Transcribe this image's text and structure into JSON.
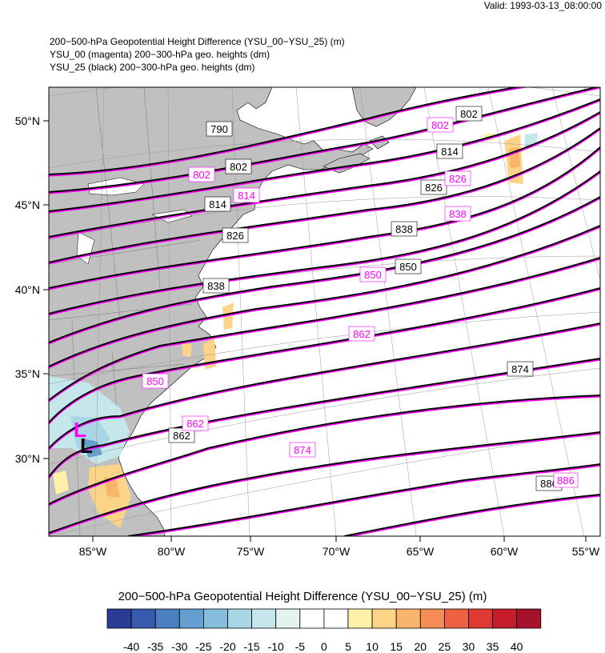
{
  "valid_time": "Valid: 1993-03-13_08:00:00",
  "titles": [
    "200−500-hPa Geopotential Height Difference (YSU_00−YSU_25)   (m)",
    "YSU_00 (magenta) 200−300-hPa geo. heights   (dm)",
    "YSU_25 (black) 200−300-hPa geo. heights   (dm)"
  ],
  "map": {
    "lat_labels": [
      "50°N",
      "45°N",
      "40°N",
      "35°N",
      "30°N"
    ],
    "lon_labels": [
      "85°W",
      "80°W",
      "75°W",
      "70°W",
      "65°W",
      "60°W",
      "55°W"
    ],
    "low_markers": {
      "ysu_00": "L",
      "ysu_25": "L"
    },
    "colors": {
      "ysu_00": "#ff00ff",
      "ysu_25": "#000000",
      "land": "#c0c0c0",
      "ocean": "#ffffff"
    },
    "contour_labels_black": [
      {
        "text": "790"
      },
      {
        "text": "802"
      },
      {
        "text": "802"
      },
      {
        "text": "814"
      },
      {
        "text": "814"
      },
      {
        "text": "826"
      },
      {
        "text": "826"
      },
      {
        "text": "838"
      },
      {
        "text": "838"
      },
      {
        "text": "850"
      },
      {
        "text": "862"
      },
      {
        "text": "874"
      },
      {
        "text": "886"
      }
    ],
    "contour_labels_magenta": [
      {
        "text": "802"
      },
      {
        "text": "802"
      },
      {
        "text": "814"
      },
      {
        "text": "826"
      },
      {
        "text": "838"
      },
      {
        "text": "850"
      },
      {
        "text": "850"
      },
      {
        "text": "862"
      },
      {
        "text": "862"
      },
      {
        "text": "874"
      },
      {
        "text": "886"
      }
    ]
  },
  "colorbar": {
    "title": "200−500-hPa Geopotential Height Difference (YSU_00−YSU_25)  (m)",
    "labels": [
      "-40",
      "-35",
      "-30",
      "-25",
      "-20",
      "-15",
      "-10",
      "-5",
      "0",
      "5",
      "10",
      "15",
      "20",
      "25",
      "30",
      "35",
      "40"
    ],
    "colors": [
      "#2b3a94",
      "#3a5bad",
      "#4a7fc0",
      "#659fcd",
      "#86bcdc",
      "#a8d6e6",
      "#c5e6ea",
      "#e4f3ef",
      "#ffffff",
      "#ffffff",
      "#fff1a8",
      "#fcd488",
      "#f9b56c",
      "#f58e56",
      "#ee6242",
      "#de3a33",
      "#c41c2a",
      "#a4122c"
    ]
  }
}
